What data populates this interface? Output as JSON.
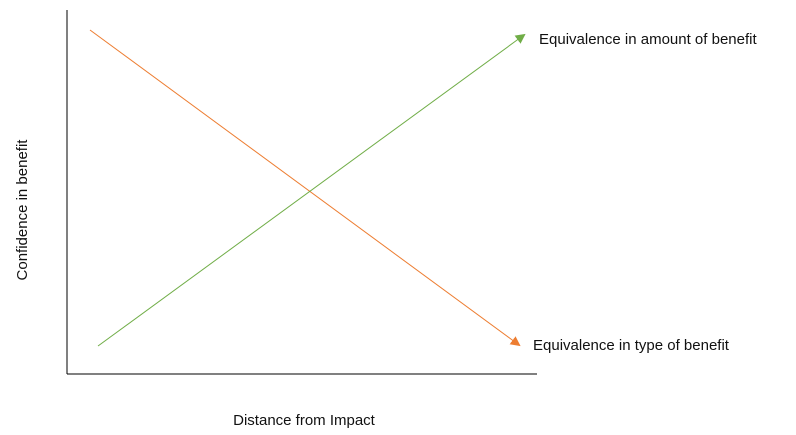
{
  "diagram": {
    "x_axis_label": "Distance from Impact",
    "y_axis_label": "Confidence in benefit",
    "lines": [
      {
        "label": "Equivalence in amount of benefit",
        "color": "#70ad47",
        "trend": "increasing"
      },
      {
        "label": "Equivalence in type of benefit",
        "color": "#ed7d31",
        "trend": "decreasing"
      }
    ]
  }
}
